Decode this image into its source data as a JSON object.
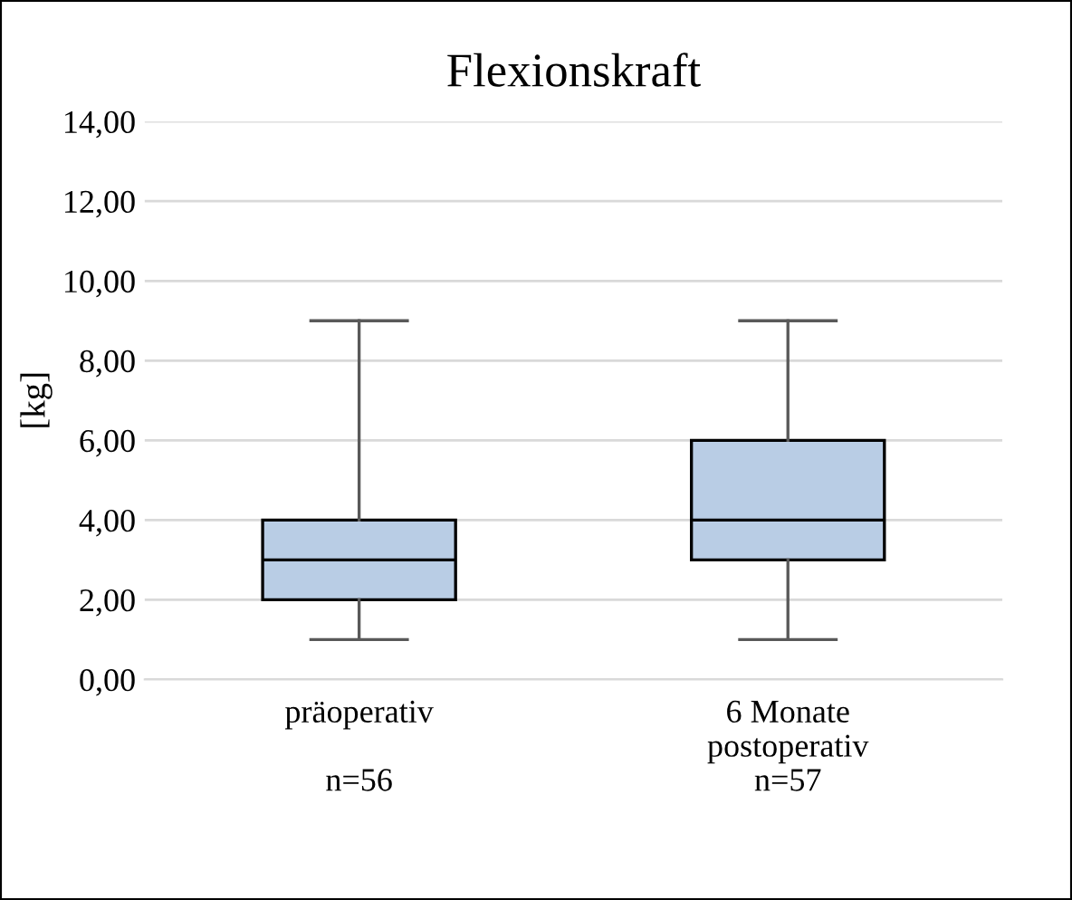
{
  "chart_data": {
    "type": "box",
    "title": "Flexionskraft",
    "ylabel": "[kg]",
    "categories": [
      "präoperativ\n\nn=56",
      "6 Monate\npostoperativ\nn=57"
    ],
    "boxes": [
      {
        "low": 1,
        "q1": 2,
        "median": 3,
        "q3": 4,
        "high": 9
      },
      {
        "low": 1,
        "q1": 3,
        "median": 4,
        "q3": 6,
        "high": 9
      }
    ],
    "color": "#b9cde5",
    "ylim": [
      0,
      14
    ],
    "yticks": [
      {
        "value": 0,
        "label": "0,00"
      },
      {
        "value": 2,
        "label": "2,00"
      },
      {
        "value": 4,
        "label": "4,00"
      },
      {
        "value": 6,
        "label": "6,00"
      },
      {
        "value": 8,
        "label": "8,00"
      },
      {
        "value": 10,
        "label": "10,00"
      },
      {
        "value": 12,
        "label": "12,00"
      },
      {
        "value": 14,
        "label": "14,00"
      }
    ],
    "grid": "y",
    "legend": false
  }
}
